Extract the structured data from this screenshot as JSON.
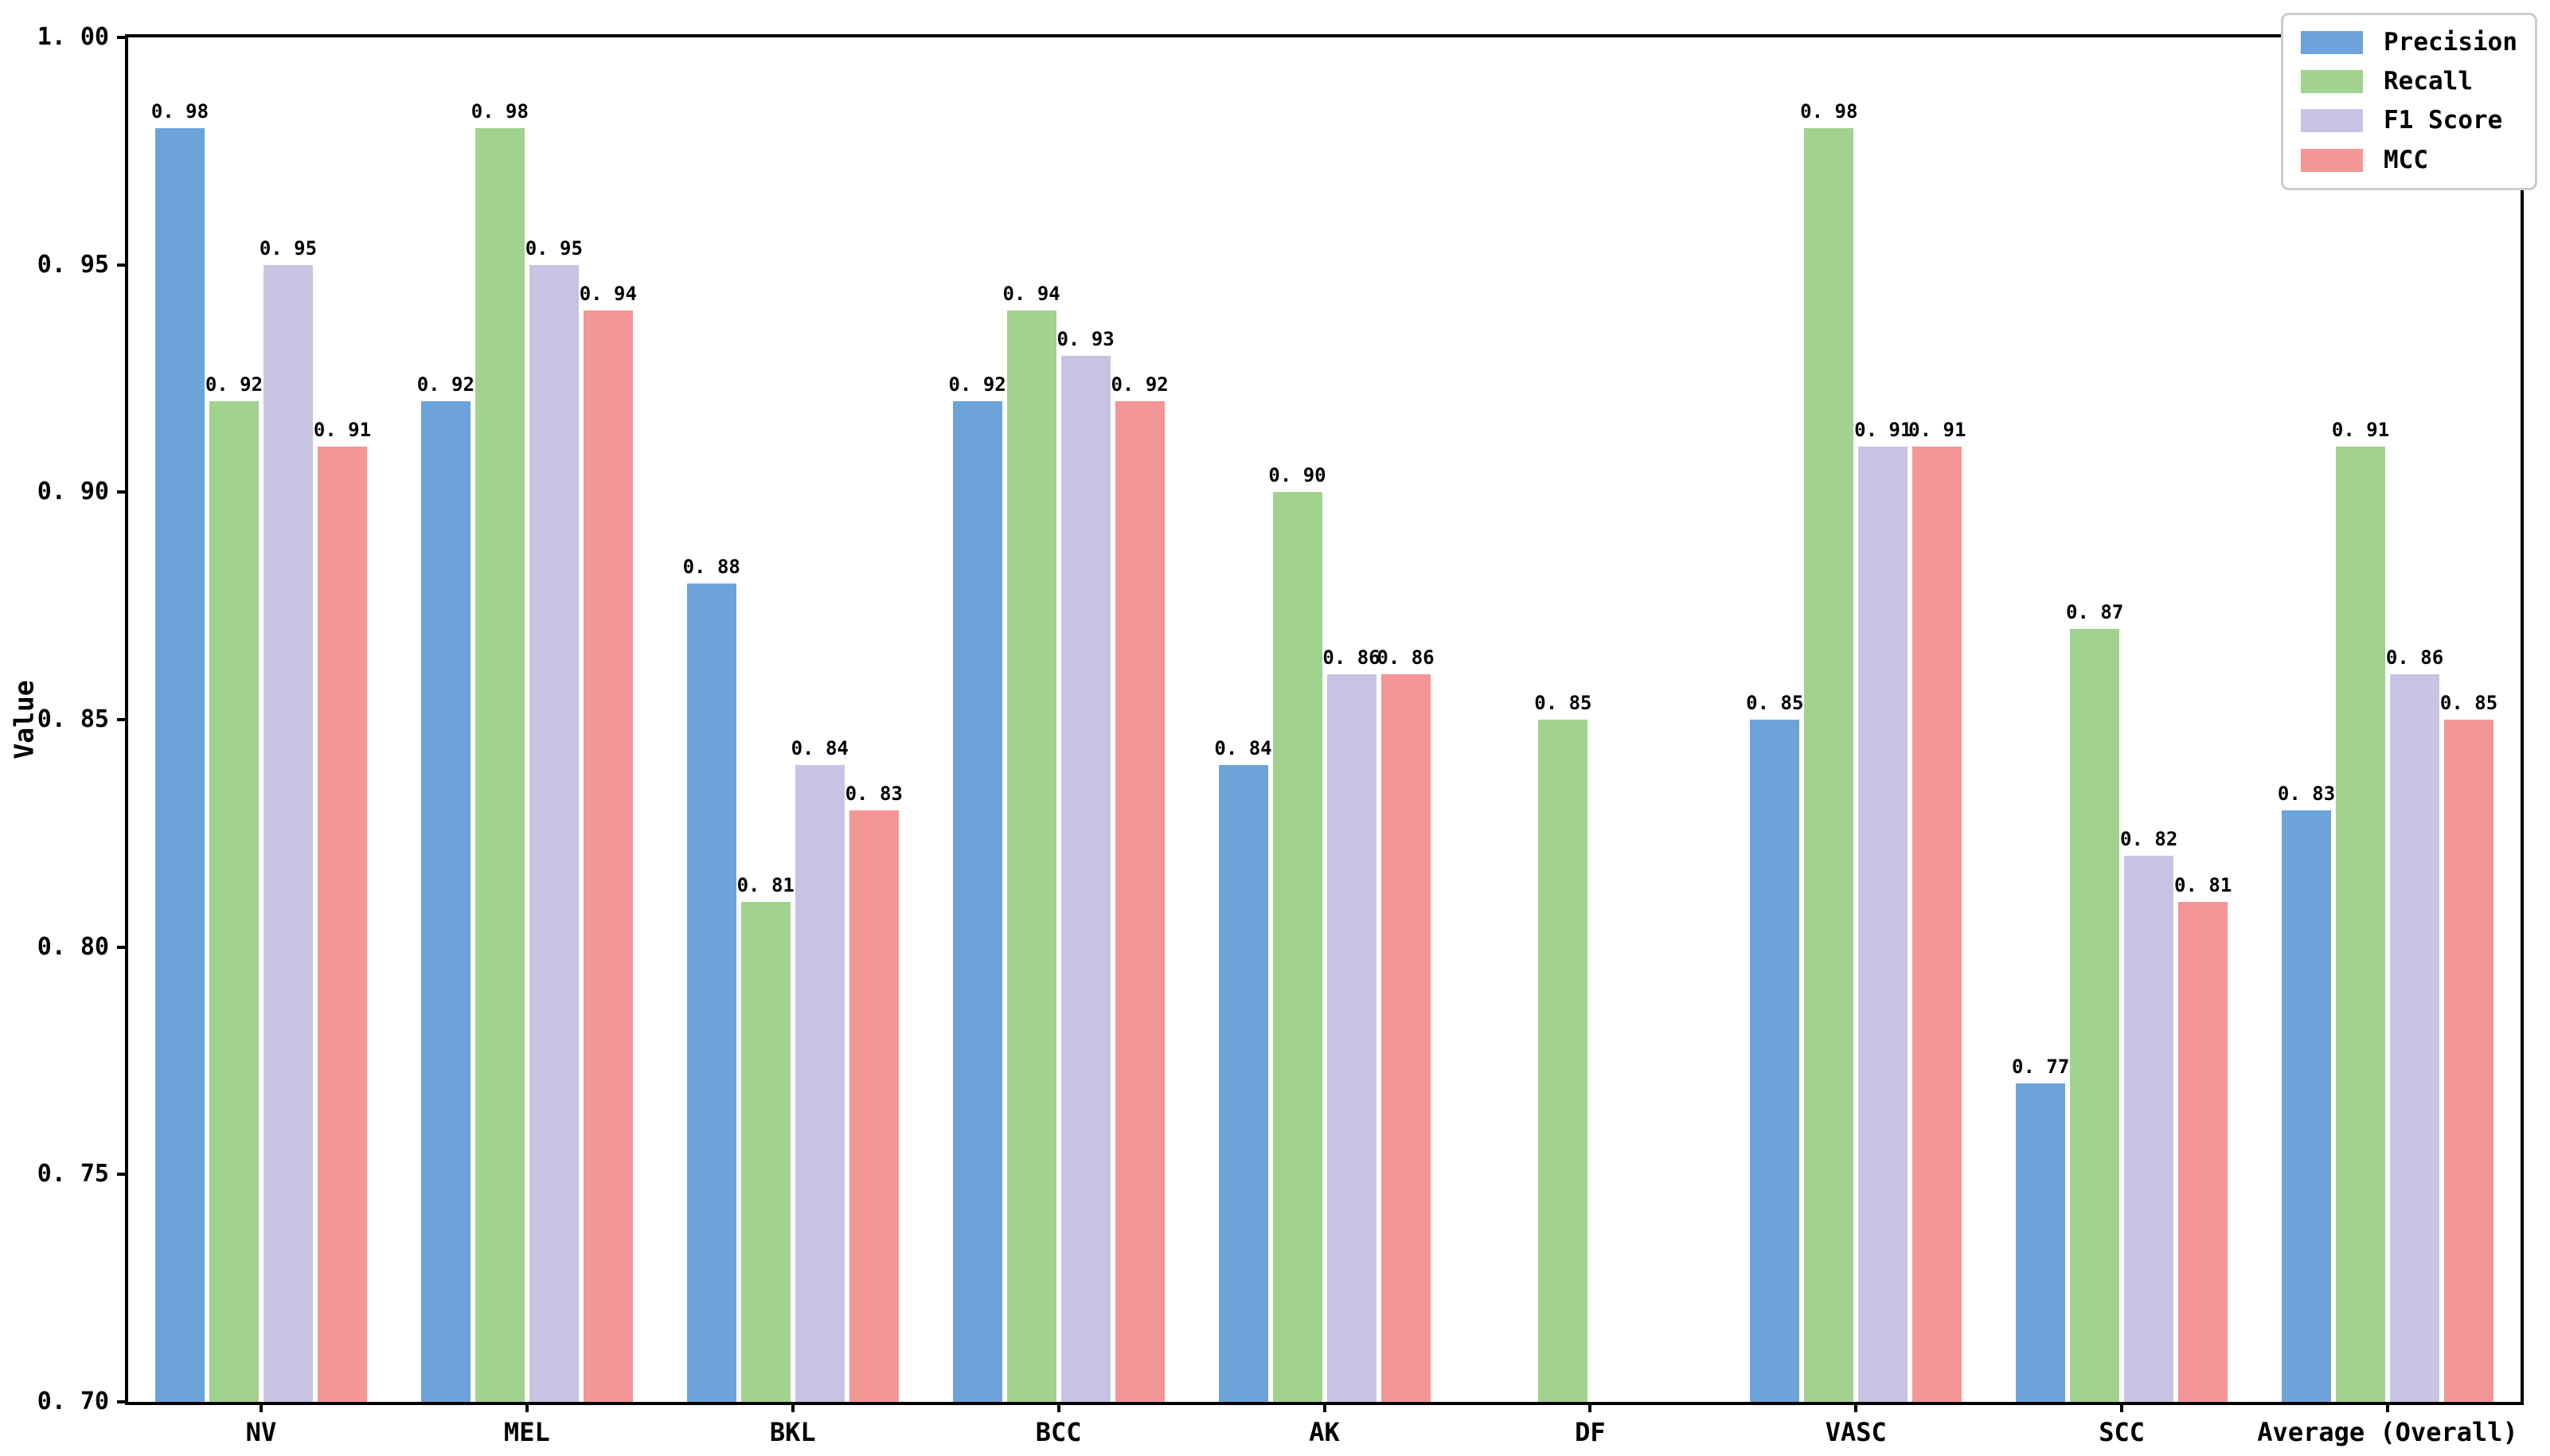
{
  "chart_data": {
    "type": "bar",
    "title": "",
    "ylabel": "Value",
    "xlabel": "",
    "ylim": [
      0.7,
      1.0
    ],
    "yticks": [
      0.7,
      0.75,
      0.8,
      0.85,
      0.9,
      0.95,
      1.0
    ],
    "grid": false,
    "legend_position": "upper right",
    "bar_label_decimals": 2,
    "categories": [
      "NV",
      "MEL",
      "BKL",
      "BCC",
      "AK",
      "DF",
      "VASC",
      "SCC",
      "Average (Overall)"
    ],
    "series": [
      {
        "name": "Precision",
        "color": "#6CA4DA",
        "values": [
          0.98,
          0.92,
          0.88,
          0.92,
          0.84,
          null,
          0.85,
          0.77,
          0.83
        ]
      },
      {
        "name": "Recall",
        "color": "#A1D28E",
        "values": [
          0.92,
          0.98,
          0.81,
          0.94,
          0.9,
          0.85,
          0.98,
          0.87,
          0.91
        ]
      },
      {
        "name": "F1 Score",
        "color": "#C6C3E3",
        "values": [
          0.95,
          0.95,
          0.84,
          0.93,
          0.86,
          null,
          0.91,
          0.82,
          0.86
        ]
      },
      {
        "name": "MCC",
        "color": "#F49596",
        "values": [
          0.91,
          0.94,
          0.83,
          0.92,
          0.86,
          null,
          0.91,
          0.81,
          0.85
        ]
      }
    ]
  },
  "axis": {
    "y_label": "Value"
  }
}
